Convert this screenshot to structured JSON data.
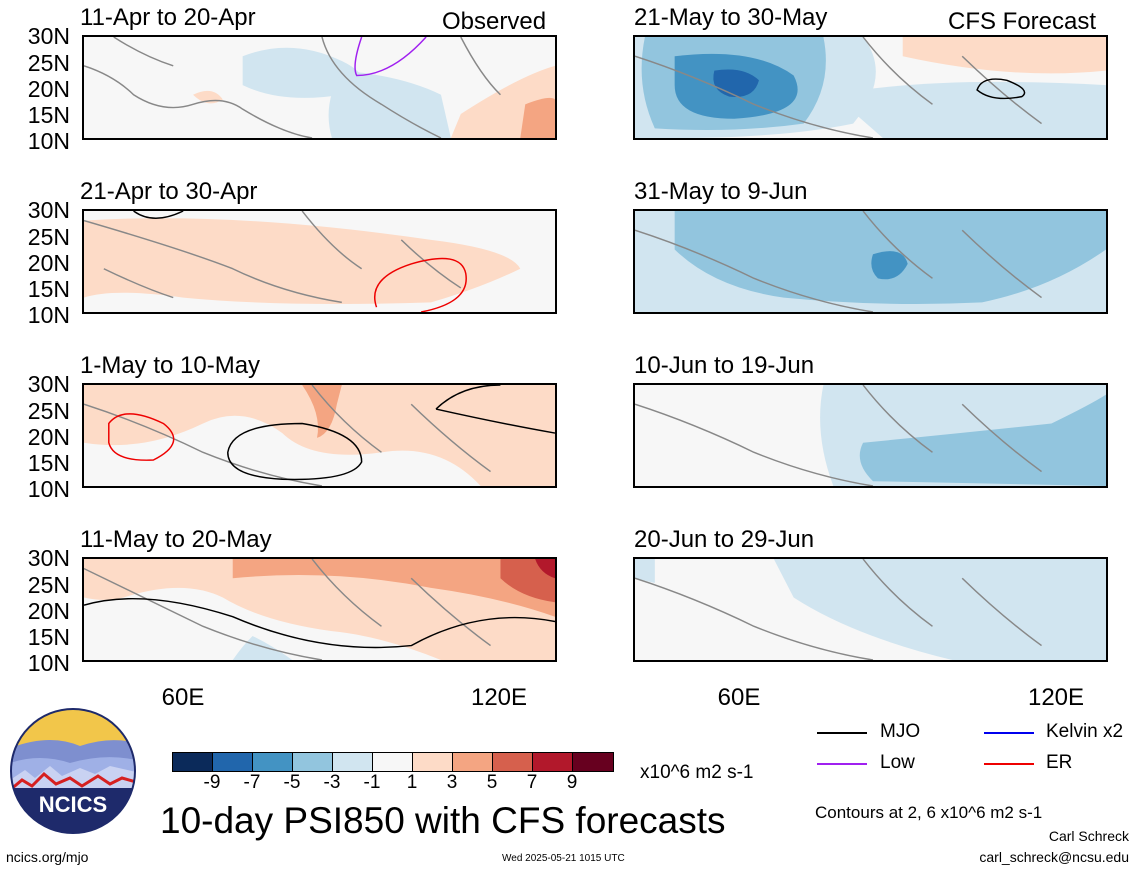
{
  "panels": {
    "p1": {
      "title": "11-Apr to 20-Apr",
      "note": "Observed"
    },
    "p2": {
      "title": "21-Apr to 30-Apr"
    },
    "p3": {
      "title": "1-May to 10-May"
    },
    "p4": {
      "title": "11-May to 20-May"
    },
    "p5": {
      "title": "21-May to 30-May",
      "note": "CFS Forecast"
    },
    "p6": {
      "title": "31-May to 9-Jun"
    },
    "p7": {
      "title": "10-Jun to 19-Jun"
    },
    "p8": {
      "title": "20-Jun to 29-Jun"
    }
  },
  "lat_labels": [
    "30N",
    "25N",
    "20N",
    "15N",
    "10N"
  ],
  "lon_labels": [
    "60E",
    "120E"
  ],
  "colorbar": {
    "colors": [
      "#0b2a5a",
      "#2166ac",
      "#4393c3",
      "#92c5de",
      "#d1e5f0",
      "#f7f7f7",
      "#fddbc7",
      "#f4a582",
      "#d6604d",
      "#b2182b",
      "#67001f"
    ],
    "ticks": [
      "-9",
      "-7",
      "-5",
      "-3",
      "-1",
      "1",
      "3",
      "5",
      "7",
      "9"
    ],
    "unit": "x10^6 m2 s-1"
  },
  "legend": {
    "mjo": {
      "label": "MJO",
      "color": "#000000"
    },
    "kelvin": {
      "label": "Kelvin x2",
      "color": "#0000ee"
    },
    "low": {
      "label": "Low",
      "color": "#a020f0"
    },
    "er": {
      "label": "ER",
      "color": "#ee0000"
    }
  },
  "logo_text": "NCICS",
  "main_title": "10-day PSI850 with CFS forecasts",
  "contours_note": "Contours at 2, 6 x10^6 m2 s-1",
  "author": "Carl Schreck",
  "email": "carl_schreck@ncsu.edu",
  "url": "ncics.org/mjo",
  "timestamp": "Wed 2025-05-21 1015 UTC"
}
